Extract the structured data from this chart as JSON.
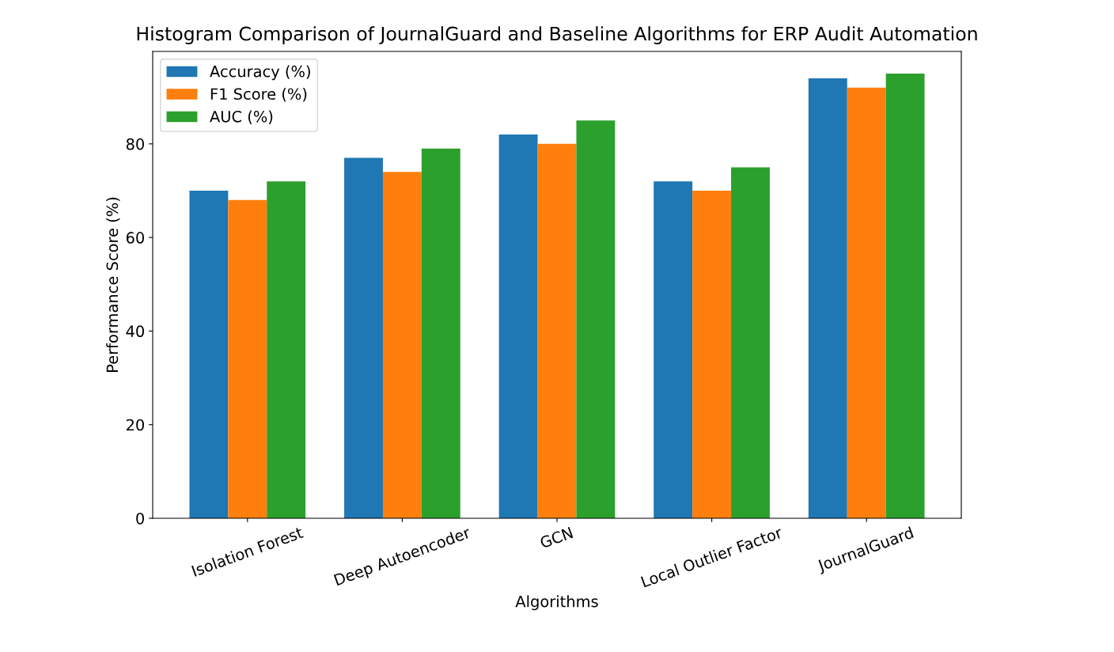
{
  "chart_data": {
    "type": "bar",
    "title": "Histogram Comparison of JournalGuard and Baseline Algorithms for ERP Audit Automation",
    "xlabel": "Algorithms",
    "ylabel": "Performance Score (%)",
    "categories": [
      "Isolation Forest",
      "Deep Autoencoder",
      "GCN",
      "Local Outlier Factor",
      "JournalGuard"
    ],
    "series": [
      {
        "name": "Accuracy (%)",
        "color": "#1f77b4",
        "values": [
          70,
          77,
          82,
          72,
          94
        ]
      },
      {
        "name": "F1 Score (%)",
        "color": "#ff7f0e",
        "values": [
          68,
          74,
          80,
          70,
          92
        ]
      },
      {
        "name": "AUC (%)",
        "color": "#2ca02c",
        "values": [
          72,
          79,
          85,
          75,
          95
        ]
      }
    ],
    "ylim": [
      0,
      99.75
    ],
    "yticks": [
      0,
      20,
      40,
      60,
      80
    ],
    "legend": "top left",
    "grid": false
  }
}
